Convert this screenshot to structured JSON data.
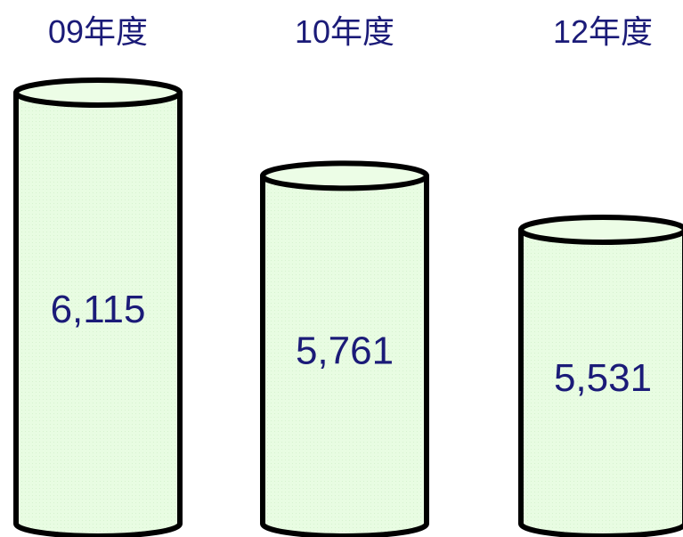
{
  "chart_data": {
    "type": "bar",
    "categories": [
      "09年度",
      "10年度",
      "12年度"
    ],
    "values": [
      6115,
      5761,
      5531
    ],
    "value_labels": [
      "6,115",
      "5,761",
      "5,531"
    ],
    "title": "",
    "xlabel": "",
    "ylabel": "",
    "grid": false,
    "legend": "none",
    "bar_shape": "cylinder"
  },
  "colors": {
    "cylinder_fill": "#e8fce2",
    "cylinder_top_fill": "#ecfde6",
    "cylinder_stroke": "#000000",
    "text": "#1b1b78"
  }
}
